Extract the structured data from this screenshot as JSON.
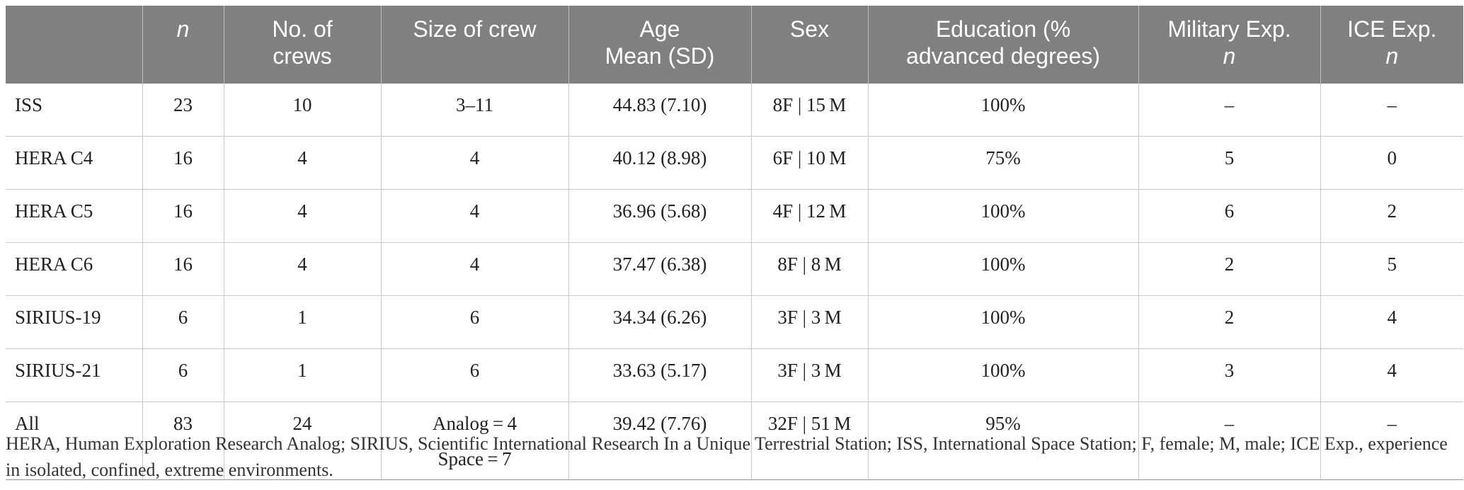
{
  "table": {
    "headers": [
      {
        "line1": "",
        "line2": "",
        "italic1": false,
        "italic2": false
      },
      {
        "line1": "n",
        "line2": "",
        "italic1": true,
        "italic2": false
      },
      {
        "line1": "No. of",
        "line2": "crews",
        "italic1": false,
        "italic2": false
      },
      {
        "line1": "Size of crew",
        "line2": "",
        "italic1": false,
        "italic2": false
      },
      {
        "line1": "Age",
        "line2": "Mean (SD)",
        "italic1": false,
        "italic2": false
      },
      {
        "line1": "Sex",
        "line2": "",
        "italic1": false,
        "italic2": false
      },
      {
        "line1": "Education (%",
        "line2": "advanced degrees)",
        "italic1": false,
        "italic2": false
      },
      {
        "line1": "Military Exp.",
        "line2": "n",
        "italic1": false,
        "italic2": true
      },
      {
        "line1": "ICE Exp.",
        "line2": "n",
        "italic1": false,
        "italic2": true
      }
    ],
    "rows": [
      {
        "mission": "ISS",
        "n": "23",
        "crews": "10",
        "size": "3–11",
        "size2": "",
        "age": "44.83 (7.10)",
        "sex": "8F | 15 M",
        "education": "100%",
        "military": "–",
        "ice": "–"
      },
      {
        "mission": "HERA C4",
        "n": "16",
        "crews": "4",
        "size": "4",
        "size2": "",
        "age": "40.12 (8.98)",
        "sex": "6F | 10 M",
        "education": "75%",
        "military": "5",
        "ice": "0"
      },
      {
        "mission": "HERA C5",
        "n": "16",
        "crews": "4",
        "size": "4",
        "size2": "",
        "age": "36.96 (5.68)",
        "sex": "4F | 12 M",
        "education": "100%",
        "military": "6",
        "ice": "2"
      },
      {
        "mission": "HERA C6",
        "n": "16",
        "crews": "4",
        "size": "4",
        "size2": "",
        "age": "37.47 (6.38)",
        "sex": "8F | 8 M",
        "education": "100%",
        "military": "2",
        "ice": "5"
      },
      {
        "mission": "SIRIUS-19",
        "n": "6",
        "crews": "1",
        "size": "6",
        "size2": "",
        "age": "34.34 (6.26)",
        "sex": "3F | 3 M",
        "education": "100%",
        "military": "2",
        "ice": "4"
      },
      {
        "mission": "SIRIUS-21",
        "n": "6",
        "crews": "1",
        "size": "6",
        "size2": "",
        "age": "33.63 (5.17)",
        "sex": "3F | 3 M",
        "education": "100%",
        "military": "3",
        "ice": "4"
      },
      {
        "mission": "All",
        "n": "83",
        "crews": "24",
        "size": "Analog = 4",
        "size2": "Space = 7",
        "age": "39.42 (7.76)",
        "sex": "32F | 51 M",
        "education": "95%",
        "military": "–",
        "ice": "–"
      }
    ]
  },
  "footnote": "HERA, Human Exploration Research Analog; SIRIUS, Scientific International Research In a Unique Terrestrial Station; ISS, International Space Station; F, female; M, male; ICE Exp., experience in isolated, confined, extreme environments."
}
